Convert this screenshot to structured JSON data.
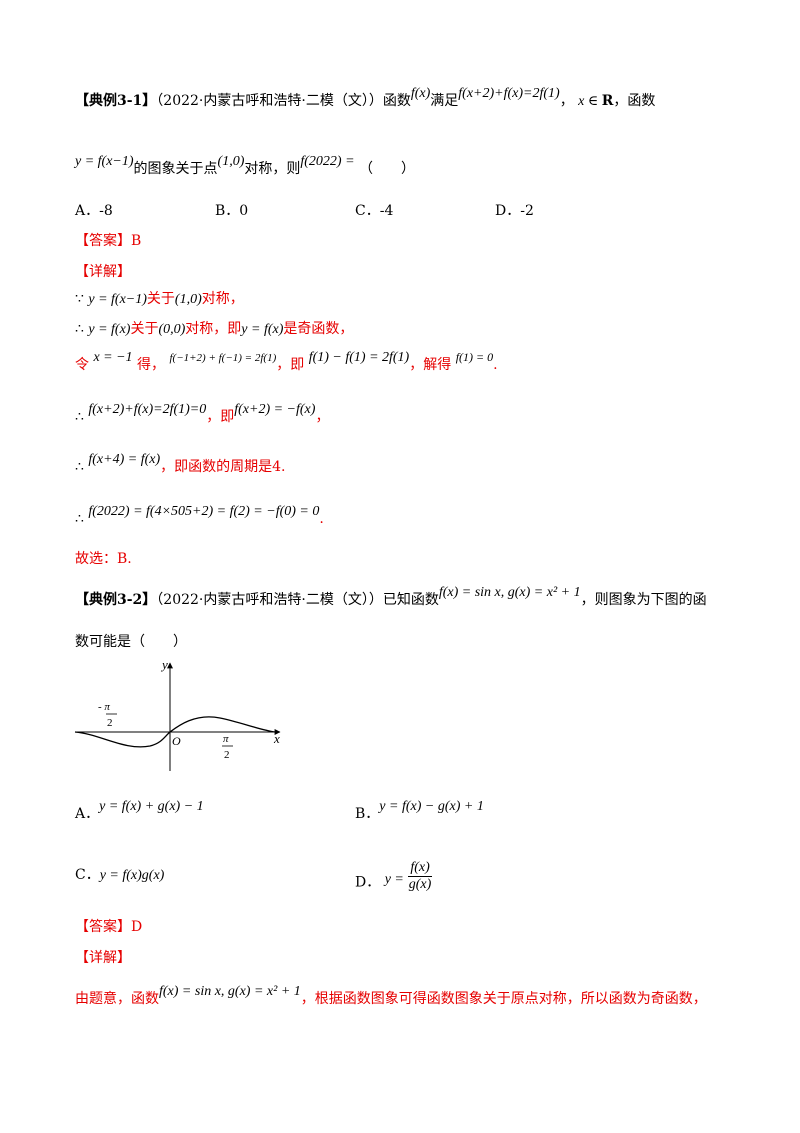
{
  "ex1": {
    "tag": "【典例3-1】",
    "source": "（2022·内蒙古呼和浩特·二模（文））",
    "t1": "函数",
    "f1": "f(x)",
    "t2": "满足",
    "eq1": "f(x+2)+f(x)=2f(1)",
    "t3": "，",
    "dom": "x ∈ ",
    "domR": "R",
    "t4": "，函数",
    "f2": "y = f(x−1)",
    "t5": "的图象关于点",
    "pt": "(1,0)",
    "t6": "对称，则",
    "f3": "f(2022) =",
    "paren": "（　　）",
    "options": [
      "A．-8",
      "B．0",
      "C．-4",
      "D．-2"
    ],
    "answer_label": "【答案】",
    "answer": "B",
    "detail_label": "【详解】",
    "s1_sym": "∵",
    "s1_math": "y = f(x−1)",
    "s1_text1": "关于",
    "s1_pt": "(1,0)",
    "s1_text2": "对称，",
    "s2_sym": "∴",
    "s2_math": "y = f(x)",
    "s2_text1": "关于",
    "s2_pt": "(0,0)",
    "s2_text2": "对称，即",
    "s2_math2": "y = f(x)",
    "s2_text3": "是奇函数，",
    "s3_ling": "令",
    "s3_x": "x = −1",
    "s3_de": "得，",
    "s3_eq": "f(−1+2) + f(−1) = 2f(1)",
    "s3_ji": "，即",
    "s3_eq2": "f(1) − f(1) = 2f(1)",
    "s3_jd": "，解得",
    "s3_eq3": "f(1) = 0",
    "s3_end": ".",
    "s4_sym": "∴",
    "s4_eq": "f(x+2)+f(x)=2f(1)=0",
    "s4_ji": "，即",
    "s4_eq2": "f(x+2) = −f(x)",
    "s4_end": "，",
    "s5_sym": "∴",
    "s5_eq": "f(x+4) = f(x)",
    "s5_text": "，即函数的周期是4.",
    "s6_sym": "∴",
    "s6_eq": "f(2022) = f(4×505+2) = f(2) = −f(0) = 0",
    "s6_end": ".",
    "conclusion": "故选：B."
  },
  "ex2": {
    "tag": "【典例3-2】",
    "source": "（2022·内蒙古呼和浩特·二模（文））",
    "t1": "已知函数",
    "fg": "f(x) = sin x, g(x) = x² + 1",
    "t2": "，则图象为下图的函",
    "t3": "数可能是（　　）",
    "graph": {
      "y_label": "y",
      "x_label": "x",
      "origin": "O",
      "neg_tick_num": "- π",
      "neg_tick_den": "2",
      "pos_tick_num": "π",
      "pos_tick_den": "2"
    },
    "optA_label": "A．",
    "optA": "y = f(x) + g(x) − 1",
    "optB_label": "B．",
    "optB": "y = f(x) − g(x) + 1",
    "optC_label": "C．",
    "optC": "y = f(x)g(x)",
    "optD_label": "D．",
    "optD_pre": "y =",
    "optD_num": "f(x)",
    "optD_den": "g(x)",
    "answer_label": "【答案】",
    "answer": "D",
    "detail_label": "【详解】",
    "d1_text1": "由题意，函数",
    "d1_math": "f(x) = sin x, g(x) = x² + 1",
    "d1_text2": "，根据函数图象可得函数图象关于原点对称，所以函数为奇函数，"
  },
  "colors": {
    "red": "#e60000",
    "black": "#000000"
  }
}
